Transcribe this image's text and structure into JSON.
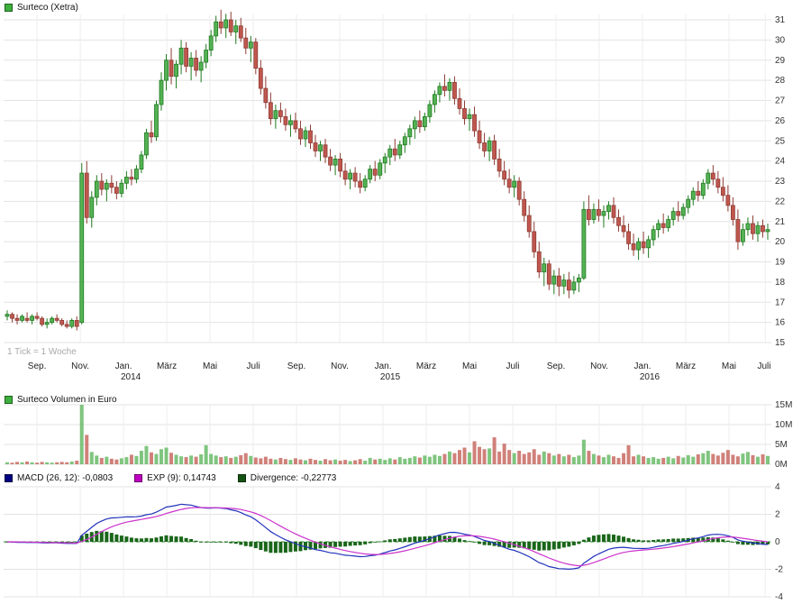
{
  "header": {
    "title": "Surteco (Xetra)"
  },
  "tick_note": "1 Tick = 1 Woche",
  "volume_header": {
    "title": "Surteco Volumen in Euro"
  },
  "macd_header": {
    "macd_label": "MACD (26, 12): -0,0803",
    "exp_label": "EXP (9): 0,14743",
    "divergence_label": "Divergence: -0,22773"
  },
  "colors": {
    "up": "#54b254",
    "up_border": "#1f7a1f",
    "down": "#c0574e",
    "down_border": "#8e3c35",
    "grid": "#e3e3e3",
    "grid_vertical": "#ededed",
    "axis_text": "#333333",
    "macd_line": "#2233bb",
    "exp_line": "#cc33cc",
    "divergence_bar": "#1a661a",
    "zero_line": "#2e8b2e",
    "legend_green": "#3db03d",
    "legend_navy": "#000080",
    "legend_magenta": "#c000c0",
    "legend_darkgreen": "#145214",
    "note_gray": "#a9a9a9"
  },
  "chart_data": [
    {
      "type": "candlestick",
      "title": "Surteco (Xetra)",
      "timeframe": "1 Tick = 1 Woche",
      "ylim": [
        15,
        31
      ],
      "yticks": [
        15,
        16,
        17,
        18,
        19,
        20,
        21,
        22,
        23,
        24,
        25,
        26,
        27,
        28,
        29,
        30,
        31
      ],
      "x_axis": {
        "labels": [
          {
            "text": "Sep.",
            "t": 6
          },
          {
            "text": "Nov.",
            "t": 14.7
          },
          {
            "text": "Jan.",
            "t": 23.4,
            "year": "2014"
          },
          {
            "text": "März",
            "t": 32.1
          },
          {
            "text": "Mai",
            "t": 40.8
          },
          {
            "text": "Juli",
            "t": 49.5
          },
          {
            "text": "Sep.",
            "t": 58.2
          },
          {
            "text": "Nov.",
            "t": 66.9
          },
          {
            "text": "Jan.",
            "t": 75.6,
            "year": "2015"
          },
          {
            "text": "März",
            "t": 84.3
          },
          {
            "text": "Mai",
            "t": 93
          },
          {
            "text": "Juli",
            "t": 101.7
          },
          {
            "text": "Sep.",
            "t": 110.4
          },
          {
            "text": "Nov.",
            "t": 119.1
          },
          {
            "text": "Jan.",
            "t": 127.8,
            "year": "2016"
          },
          {
            "text": "März",
            "t": 136.5
          },
          {
            "text": "Mai",
            "t": 145.2
          },
          {
            "text": "Juli",
            "t": 152.5
          }
        ]
      },
      "candles": [
        [
          16.3,
          16.6,
          16.1,
          16.4
        ],
        [
          16.4,
          16.5,
          16.0,
          16.2
        ],
        [
          16.2,
          16.4,
          15.9,
          16.1
        ],
        [
          16.1,
          16.4,
          16.0,
          16.3
        ],
        [
          16.2,
          16.5,
          16.0,
          16.1
        ],
        [
          16.1,
          16.4,
          15.9,
          16.3
        ],
        [
          16.3,
          16.5,
          16.1,
          16.2
        ],
        [
          16.2,
          16.3,
          15.8,
          15.9
        ],
        [
          15.9,
          16.2,
          15.7,
          16.0
        ],
        [
          16.0,
          16.3,
          15.9,
          16.2
        ],
        [
          16.2,
          16.4,
          16.0,
          16.1
        ],
        [
          16.1,
          16.2,
          15.8,
          15.9
        ],
        [
          15.9,
          16.1,
          15.7,
          15.8
        ],
        [
          15.8,
          16.2,
          15.7,
          16.1
        ],
        [
          16.1,
          16.3,
          15.6,
          15.8
        ],
        [
          16.0,
          23.9,
          15.9,
          23.4
        ],
        [
          23.4,
          24.0,
          20.9,
          21.2
        ],
        [
          21.2,
          22.5,
          20.7,
          22.2
        ],
        [
          22.2,
          23.3,
          21.8,
          23.0
        ],
        [
          23.0,
          23.4,
          22.3,
          22.6
        ],
        [
          22.6,
          23.1,
          22.0,
          22.9
        ],
        [
          22.9,
          23.3,
          22.4,
          22.7
        ],
        [
          22.7,
          23.0,
          22.1,
          22.4
        ],
        [
          22.4,
          23.1,
          22.2,
          22.9
        ],
        [
          22.9,
          23.5,
          22.6,
          23.2
        ],
        [
          23.2,
          23.6,
          22.8,
          23.1
        ],
        [
          23.1,
          23.8,
          22.9,
          23.6
        ],
        [
          23.6,
          24.5,
          23.4,
          24.3
        ],
        [
          24.3,
          25.6,
          24.1,
          25.4
        ],
        [
          25.4,
          26.0,
          24.9,
          25.2
        ],
        [
          25.2,
          27.0,
          25.0,
          26.8
        ],
        [
          26.8,
          28.4,
          26.5,
          28.0
        ],
        [
          28.0,
          29.3,
          27.5,
          29.0
        ],
        [
          29.0,
          29.6,
          27.8,
          28.2
        ],
        [
          28.2,
          29.0,
          27.6,
          28.8
        ],
        [
          28.8,
          30.0,
          28.3,
          29.6
        ],
        [
          29.6,
          29.9,
          28.4,
          28.7
        ],
        [
          28.7,
          29.4,
          28.0,
          29.1
        ],
        [
          29.1,
          29.5,
          28.2,
          28.5
        ],
        [
          28.5,
          29.2,
          27.9,
          28.9
        ],
        [
          28.9,
          29.8,
          28.6,
          29.5
        ],
        [
          29.5,
          30.5,
          29.2,
          30.2
        ],
        [
          30.2,
          31.2,
          29.9,
          30.9
        ],
        [
          30.9,
          31.5,
          30.3,
          30.6
        ],
        [
          30.6,
          31.3,
          30.1,
          31.0
        ],
        [
          31.0,
          31.4,
          30.2,
          30.4
        ],
        [
          30.4,
          31.0,
          29.8,
          30.7
        ],
        [
          30.7,
          31.1,
          29.9,
          30.1
        ],
        [
          30.1,
          30.6,
          29.3,
          29.6
        ],
        [
          29.6,
          30.2,
          28.9,
          29.9
        ],
        [
          29.9,
          30.1,
          28.3,
          28.6
        ],
        [
          28.6,
          29.0,
          27.3,
          27.6
        ],
        [
          27.6,
          28.2,
          26.6,
          26.9
        ],
        [
          26.9,
          27.4,
          25.8,
          26.1
        ],
        [
          26.1,
          26.8,
          25.6,
          26.5
        ],
        [
          26.5,
          26.9,
          25.9,
          26.2
        ],
        [
          26.2,
          26.6,
          25.5,
          25.8
        ],
        [
          25.8,
          26.3,
          25.2,
          26.0
        ],
        [
          26.0,
          26.4,
          25.4,
          25.6
        ],
        [
          25.6,
          26.0,
          24.8,
          25.1
        ],
        [
          25.1,
          25.7,
          24.7,
          25.5
        ],
        [
          25.5,
          25.8,
          24.6,
          24.9
        ],
        [
          24.9,
          25.3,
          24.2,
          24.5
        ],
        [
          24.5,
          25.0,
          24.0,
          24.8
        ],
        [
          24.8,
          25.1,
          23.9,
          24.2
        ],
        [
          24.2,
          24.6,
          23.5,
          23.8
        ],
        [
          23.8,
          24.3,
          23.3,
          24.1
        ],
        [
          24.1,
          24.4,
          23.2,
          23.5
        ],
        [
          23.5,
          23.9,
          22.8,
          23.1
        ],
        [
          23.1,
          23.6,
          22.6,
          23.4
        ],
        [
          23.4,
          23.7,
          22.7,
          23.0
        ],
        [
          23.0,
          23.4,
          22.4,
          22.7
        ],
        [
          22.7,
          23.3,
          22.5,
          23.1
        ],
        [
          23.1,
          23.8,
          22.9,
          23.6
        ],
        [
          23.6,
          24.0,
          23.0,
          23.3
        ],
        [
          23.3,
          24.1,
          23.1,
          23.9
        ],
        [
          23.9,
          24.4,
          23.4,
          24.2
        ],
        [
          24.2,
          24.8,
          23.8,
          24.6
        ],
        [
          24.6,
          25.1,
          24.0,
          24.3
        ],
        [
          24.3,
          25.0,
          24.1,
          24.8
        ],
        [
          24.8,
          25.4,
          24.4,
          25.2
        ],
        [
          25.2,
          25.8,
          24.8,
          25.6
        ],
        [
          25.6,
          26.2,
          25.1,
          26.0
        ],
        [
          26.0,
          26.5,
          25.4,
          25.7
        ],
        [
          25.7,
          26.4,
          25.5,
          26.2
        ],
        [
          26.2,
          27.0,
          25.9,
          26.8
        ],
        [
          26.8,
          27.5,
          26.4,
          27.3
        ],
        [
          27.3,
          27.9,
          26.9,
          27.7
        ],
        [
          27.7,
          28.3,
          27.2,
          27.5
        ],
        [
          27.5,
          28.1,
          27.0,
          27.9
        ],
        [
          27.9,
          28.2,
          26.8,
          27.1
        ],
        [
          27.1,
          27.6,
          26.3,
          26.6
        ],
        [
          26.6,
          27.0,
          25.8,
          26.1
        ],
        [
          26.1,
          26.6,
          25.5,
          26.3
        ],
        [
          26.3,
          26.7,
          25.2,
          25.5
        ],
        [
          25.5,
          26.0,
          24.6,
          24.9
        ],
        [
          24.9,
          25.4,
          24.2,
          24.5
        ],
        [
          24.5,
          25.2,
          24.0,
          25.0
        ],
        [
          25.0,
          25.3,
          23.8,
          24.1
        ],
        [
          24.1,
          24.6,
          23.2,
          23.5
        ],
        [
          23.5,
          24.0,
          22.8,
          23.1
        ],
        [
          23.1,
          23.6,
          22.4,
          22.7
        ],
        [
          22.7,
          23.3,
          22.2,
          23.0
        ],
        [
          23.0,
          23.2,
          21.8,
          22.1
        ],
        [
          22.1,
          22.5,
          21.0,
          21.3
        ],
        [
          21.3,
          21.8,
          20.2,
          20.5
        ],
        [
          20.5,
          21.0,
          19.2,
          19.5
        ],
        [
          19.5,
          20.0,
          18.2,
          18.5
        ],
        [
          18.5,
          19.2,
          17.8,
          18.9
        ],
        [
          18.9,
          19.1,
          17.6,
          17.9
        ],
        [
          17.9,
          18.6,
          17.4,
          18.3
        ],
        [
          18.3,
          18.7,
          17.3,
          17.8
        ],
        [
          17.8,
          18.4,
          17.4,
          18.1
        ],
        [
          18.1,
          18.5,
          17.2,
          17.6
        ],
        [
          17.6,
          18.3,
          17.4,
          18.0
        ],
        [
          18.0,
          18.4,
          17.5,
          18.2
        ],
        [
          18.2,
          22.0,
          18.1,
          21.6
        ],
        [
          21.6,
          22.3,
          20.8,
          21.1
        ],
        [
          21.1,
          21.9,
          20.9,
          21.6
        ],
        [
          21.6,
          22.1,
          21.0,
          21.3
        ],
        [
          21.3,
          21.8,
          20.7,
          21.5
        ],
        [
          21.5,
          22.0,
          21.1,
          21.8
        ],
        [
          21.8,
          22.2,
          20.9,
          21.2
        ],
        [
          21.2,
          21.6,
          20.5,
          20.8
        ],
        [
          20.8,
          21.3,
          20.2,
          20.5
        ],
        [
          20.5,
          20.9,
          19.6,
          19.9
        ],
        [
          19.9,
          20.4,
          19.3,
          19.6
        ],
        [
          19.6,
          20.2,
          19.1,
          20.0
        ],
        [
          20.0,
          20.5,
          19.4,
          19.7
        ],
        [
          19.7,
          20.3,
          19.2,
          20.1
        ],
        [
          20.1,
          20.8,
          19.8,
          20.6
        ],
        [
          20.6,
          21.1,
          20.2,
          20.9
        ],
        [
          20.9,
          21.4,
          20.4,
          20.7
        ],
        [
          20.7,
          21.3,
          20.5,
          21.1
        ],
        [
          21.1,
          21.7,
          20.8,
          21.5
        ],
        [
          21.5,
          22.0,
          21.0,
          21.3
        ],
        [
          21.3,
          21.9,
          21.1,
          21.7
        ],
        [
          21.7,
          22.3,
          21.4,
          22.1
        ],
        [
          22.1,
          22.7,
          21.8,
          22.5
        ],
        [
          22.5,
          23.0,
          22.0,
          22.3
        ],
        [
          22.3,
          23.1,
          22.1,
          22.9
        ],
        [
          22.9,
          23.6,
          22.6,
          23.4
        ],
        [
          23.4,
          23.8,
          22.8,
          23.1
        ],
        [
          23.1,
          23.5,
          22.4,
          22.7
        ],
        [
          22.7,
          23.2,
          22.0,
          22.3
        ],
        [
          22.3,
          22.8,
          21.5,
          21.8
        ],
        [
          21.8,
          22.2,
          20.8,
          21.1
        ],
        [
          21.1,
          21.6,
          19.6,
          20.0
        ],
        [
          20.0,
          20.9,
          19.8,
          20.6
        ],
        [
          20.6,
          21.2,
          20.3,
          20.9
        ],
        [
          20.9,
          21.3,
          20.1,
          20.4
        ],
        [
          20.4,
          21.0,
          20.0,
          20.8
        ],
        [
          20.8,
          21.1,
          20.2,
          20.5
        ],
        [
          20.5,
          20.9,
          20.1,
          20.6
        ]
      ]
    },
    {
      "type": "bar",
      "title": "Surteco Volumen in Euro",
      "ylim": [
        0,
        15
      ],
      "yticks": [
        {
          "v": 0,
          "label": "0M"
        },
        {
          "v": 5,
          "label": "5M"
        },
        {
          "v": 10,
          "label": "10M"
        },
        {
          "v": 15,
          "label": "15M"
        }
      ],
      "values": [
        0.5,
        0.4,
        0.6,
        0.5,
        0.7,
        0.5,
        0.4,
        0.6,
        0.5,
        0.4,
        0.5,
        0.6,
        0.5,
        0.7,
        0.9,
        15.2,
        7.4,
        3.1,
        2.2,
        1.6,
        1.9,
        1.4,
        1.2,
        1.5,
        1.8,
        2.4,
        2.1,
        3.4,
        4.6,
        3.0,
        2.6,
        3.8,
        4.2,
        2.9,
        2.4,
        2.0,
        1.8,
        2.2,
        1.9,
        2.5,
        4.8,
        2.6,
        2.2,
        1.8,
        2.0,
        1.6,
        1.9,
        2.3,
        2.8,
        2.1,
        1.7,
        1.5,
        1.9,
        1.4,
        1.2,
        1.6,
        1.3,
        1.1,
        1.5,
        1.2,
        1.0,
        1.4,
        1.1,
        0.9,
        1.3,
        1.0,
        1.2,
        0.9,
        1.1,
        0.8,
        1.0,
        1.3,
        0.9,
        1.6,
        1.2,
        1.4,
        1.1,
        1.5,
        1.2,
        1.8,
        1.4,
        1.6,
        2.0,
        1.7,
        2.2,
        1.9,
        2.4,
        2.1,
        2.6,
        3.2,
        2.8,
        3.6,
        4.2,
        3.0,
        5.8,
        4.4,
        3.8,
        4.0,
        6.8,
        3.2,
        5.2,
        3.6,
        2.8,
        3.4,
        2.6,
        3.0,
        3.8,
        2.4,
        3.2,
        2.8,
        2.2,
        2.6,
        2.0,
        2.4,
        1.8,
        2.2,
        6.2,
        3.4,
        2.6,
        2.2,
        1.8,
        2.4,
        2.0,
        1.6,
        2.8,
        4.8,
        2.0,
        2.4,
        2.0,
        1.6,
        1.8,
        1.4,
        1.6,
        1.9,
        1.5,
        2.1,
        1.7,
        2.3,
        1.9,
        2.5,
        2.8,
        3.4,
        2.6,
        2.2,
        2.9,
        3.6,
        2.4,
        2.0,
        2.7,
        3.1,
        2.3,
        1.9,
        2.5,
        2.1
      ]
    },
    {
      "type": "macd",
      "params": {
        "fast": 12,
        "slow": 26,
        "signal": 9
      },
      "current": {
        "macd": -0.0803,
        "exp": 0.14743,
        "divergence": -0.22773
      },
      "ylim": [
        -4,
        4
      ],
      "yticks": [
        4,
        2,
        0,
        -2,
        -4
      ]
    }
  ]
}
